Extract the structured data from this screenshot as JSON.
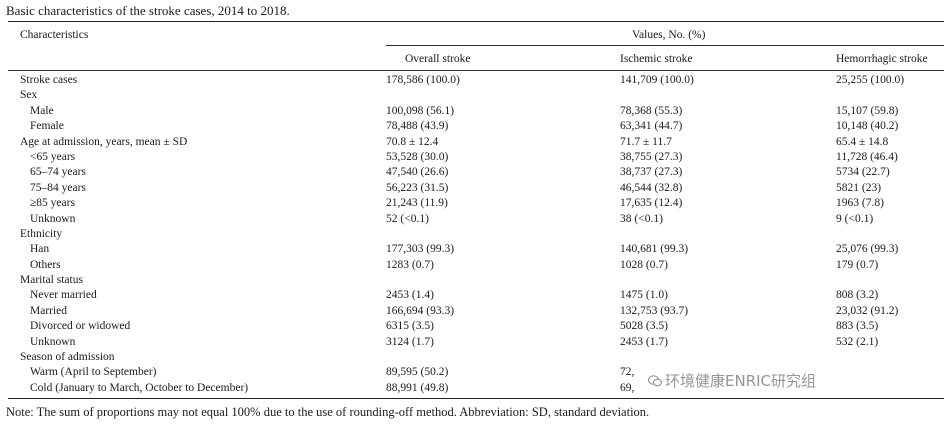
{
  "caption": "Basic characteristics of the stroke cases, 2014 to 2018.",
  "header": {
    "characteristics": "Characteristics",
    "values_group": "Values, No. (%)",
    "col_overall": "Overall stroke",
    "col_ischemic": "Ischemic stroke",
    "col_hemorrhagic": "Hemorrhagic stroke"
  },
  "rows": [
    {
      "label": "Stroke cases",
      "overall": "178,586 (100.0)",
      "ischemic": "141,709 (100.0)",
      "hemorrhagic": "25,255 (100.0)"
    },
    {
      "label": "Sex",
      "overall": "",
      "ischemic": "",
      "hemorrhagic": ""
    },
    {
      "label": "Male",
      "overall": "100,098 (56.1)",
      "ischemic": "78,368 (55.3)",
      "hemorrhagic": "15,107 (59.8)"
    },
    {
      "label": "Female",
      "overall": "78,488 (43.9)",
      "ischemic": "63,341 (44.7)",
      "hemorrhagic": "10,148 (40.2)"
    },
    {
      "label": "Age at admission, years, mean ± SD",
      "overall": "70.8 ± 12.4",
      "ischemic": "71.7 ± 11.7",
      "hemorrhagic": "65.4 ± 14.8"
    },
    {
      "label": "<65 years",
      "overall": "53,528 (30.0)",
      "ischemic": "38,755 (27.3)",
      "hemorrhagic": "11,728 (46.4)"
    },
    {
      "label": "65–74 years",
      "overall": "47,540 (26.6)",
      "ischemic": "38,737 (27.3)",
      "hemorrhagic": "5734 (22.7)"
    },
    {
      "label": "75–84 years",
      "overall": "56,223 (31.5)",
      "ischemic": "46,544 (32.8)",
      "hemorrhagic": "5821 (23)"
    },
    {
      "label": "≥85 years",
      "overall": "21,243 (11.9)",
      "ischemic": "17,635 (12.4)",
      "hemorrhagic": "1963 (7.8)"
    },
    {
      "label": "Unknown",
      "overall": "52 (<0.1)",
      "ischemic": "38 (<0.1)",
      "hemorrhagic": "9 (<0.1)"
    },
    {
      "label": "Ethnicity",
      "overall": "",
      "ischemic": "",
      "hemorrhagic": ""
    },
    {
      "label": "Han",
      "overall": "177,303 (99.3)",
      "ischemic": "140,681 (99.3)",
      "hemorrhagic": "25,076 (99.3)"
    },
    {
      "label": "Others",
      "overall": "1283 (0.7)",
      "ischemic": "1028 (0.7)",
      "hemorrhagic": "179 (0.7)"
    },
    {
      "label": "Marital status",
      "overall": "",
      "ischemic": "",
      "hemorrhagic": ""
    },
    {
      "label": "Never married",
      "overall": "2453 (1.4)",
      "ischemic": "1475 (1.0)",
      "hemorrhagic": "808 (3.2)"
    },
    {
      "label": "Married",
      "overall": "166,694 (93.3)",
      "ischemic": "132,753 (93.7)",
      "hemorrhagic": "23,032 (91.2)"
    },
    {
      "label": "Divorced or widowed",
      "overall": "6315 (3.5)",
      "ischemic": "5028 (3.5)",
      "hemorrhagic": "883 (3.5)"
    },
    {
      "label": "Unknown",
      "overall": "3124 (1.7)",
      "ischemic": "2453 (1.7)",
      "hemorrhagic": "532 (2.1)"
    },
    {
      "label": "Season of admission",
      "overall": "",
      "ischemic": "",
      "hemorrhagic": ""
    },
    {
      "label": "Warm (April to September)",
      "overall": "89,595 (50.2)",
      "ischemic": "72,",
      "hemorrhagic": ""
    },
    {
      "label": "Cold (January to March, October to December)",
      "overall": "88,991 (49.8)",
      "ischemic": "69,",
      "hemorrhagic": ""
    }
  ],
  "row_levels": [
    "top",
    "top",
    "sub",
    "sub",
    "top",
    "sub",
    "sub",
    "sub",
    "sub",
    "sub",
    "top",
    "sub",
    "sub",
    "top",
    "sub",
    "sub",
    "sub",
    "sub",
    "top",
    "sub",
    "sub"
  ],
  "note": "Note: The sum of proportions may not equal 100% due to the use of rounding-off method. Abbreviation: SD, standard deviation.",
  "watermark": "环境健康ENRIC研究组",
  "watermark_logo_icon": "wechat-logo-icon"
}
